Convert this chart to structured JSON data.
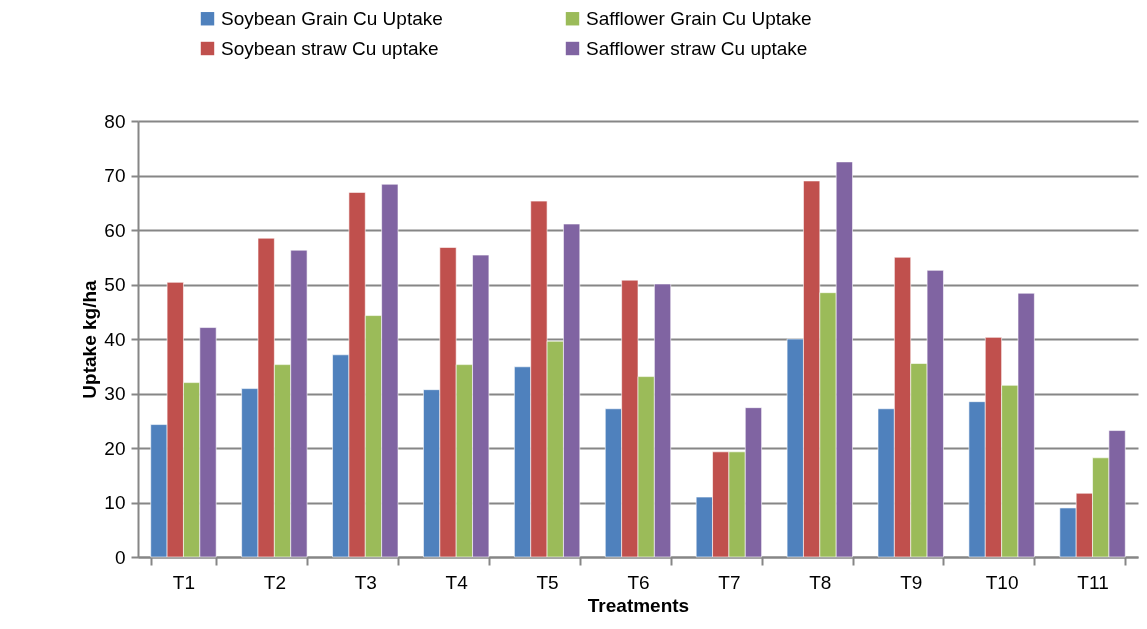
{
  "chart_data": {
    "type": "bar",
    "xlabel": "Treatments",
    "ylabel": "Uptake kg/ha",
    "categories": [
      "T1",
      "T2",
      "T3",
      "T4",
      "T5",
      "T6",
      "T7",
      "T8",
      "T9",
      "T10",
      "T11"
    ],
    "series": [
      {
        "name": "Soybean Grain Cu Uptake",
        "color": "#4f81bd",
        "values": [
          24.3,
          30.9,
          37.1,
          30.7,
          34.9,
          27.2,
          11.0,
          40.0,
          27.2,
          28.5,
          9.0
        ]
      },
      {
        "name": "Soybean straw Cu uptake",
        "color": "#c0504d",
        "values": [
          50.4,
          58.5,
          66.9,
          56.8,
          65.3,
          50.8,
          19.3,
          69.0,
          55.0,
          40.3,
          11.7
        ]
      },
      {
        "name": "Safflower Grain Cu Uptake",
        "color": "#9bbb59",
        "values": [
          32.0,
          35.3,
          44.3,
          35.3,
          39.6,
          33.1,
          19.3,
          48.5,
          35.5,
          31.5,
          18.2
        ]
      },
      {
        "name": "Safflower straw Cu uptake",
        "color": "#8064a2",
        "values": [
          42.1,
          56.3,
          68.4,
          55.4,
          61.1,
          50.1,
          27.4,
          72.5,
          52.6,
          48.4,
          23.2
        ]
      }
    ],
    "ylim": [
      0,
      80
    ],
    "yticks": [
      0,
      10,
      20,
      30,
      40,
      50,
      60,
      70,
      80
    ],
    "grid": "y",
    "legend": "top"
  }
}
